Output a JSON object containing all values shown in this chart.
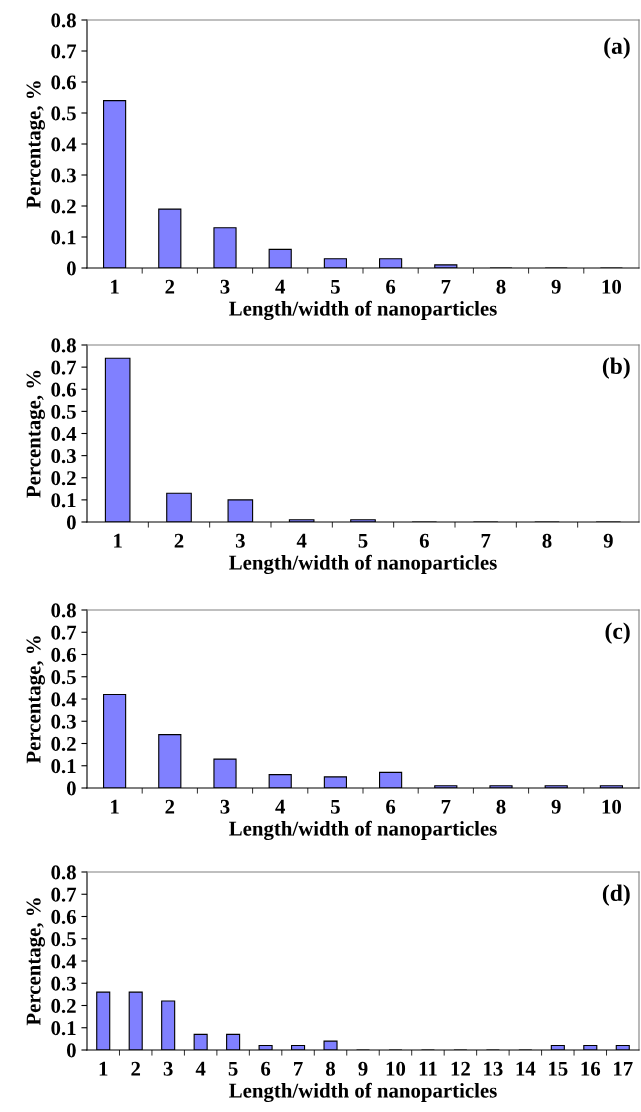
{
  "chart_data": [
    {
      "type": "bar",
      "categories": [
        "1",
        "2",
        "3",
        "4",
        "5",
        "6",
        "7",
        "8",
        "9",
        "10"
      ],
      "values": [
        0.54,
        0.19,
        0.13,
        0.06,
        0.03,
        0.03,
        0.01,
        0,
        0,
        0
      ],
      "color": "#8080ff",
      "xlabel": "Length/width of nanoparticles",
      "ylabel": "Percentage, %",
      "annotations": [
        "(a)"
      ],
      "ylim": [
        0,
        0.8
      ],
      "yticks": [
        0,
        0.1,
        0.2,
        0.3,
        0.4,
        0.5,
        0.6,
        0.7,
        0.8
      ],
      "grid": false,
      "legend": false
    },
    {
      "type": "bar",
      "categories": [
        "1",
        "2",
        "3",
        "4",
        "5",
        "6",
        "7",
        "8",
        "9"
      ],
      "values": [
        0.74,
        0.13,
        0.1,
        0.01,
        0.01,
        0,
        0,
        0,
        0
      ],
      "color": "#8080ff",
      "xlabel": "Length/width of nanoparticles",
      "ylabel": "Percentage, %",
      "annotations": [
        "(b)"
      ],
      "ylim": [
        0,
        0.8
      ],
      "yticks": [
        0,
        0.1,
        0.2,
        0.3,
        0.4,
        0.5,
        0.6,
        0.7,
        0.8
      ],
      "grid": false,
      "legend": false
    },
    {
      "type": "bar",
      "categories": [
        "1",
        "2",
        "3",
        "4",
        "5",
        "6",
        "7",
        "8",
        "9",
        "10"
      ],
      "values": [
        0.42,
        0.24,
        0.13,
        0.06,
        0.05,
        0.07,
        0.01,
        0.01,
        0.01,
        0.01
      ],
      "color": "#8080ff",
      "xlabel": "Length/width of nanoparticles",
      "ylabel": "Percentage, %",
      "annotations": [
        "(c)"
      ],
      "ylim": [
        0,
        0.8
      ],
      "yticks": [
        0,
        0.1,
        0.2,
        0.3,
        0.4,
        0.5,
        0.6,
        0.7,
        0.8
      ],
      "grid": false,
      "legend": false
    },
    {
      "type": "bar",
      "categories": [
        "1",
        "2",
        "3",
        "4",
        "5",
        "6",
        "7",
        "8",
        "9",
        "10",
        "11",
        "12",
        "13",
        "14",
        "15",
        "16",
        "17"
      ],
      "values": [
        0.26,
        0.26,
        0.22,
        0.07,
        0.07,
        0.02,
        0.02,
        0.04,
        0,
        0,
        0,
        0,
        0,
        0,
        0.02,
        0.02,
        0.02
      ],
      "color": "#8080ff",
      "xlabel": "Length/width of nanoparticles",
      "ylabel": "Percentage, %",
      "annotations": [
        "(d)"
      ],
      "ylim": [
        0,
        0.8
      ],
      "yticks": [
        0,
        0.1,
        0.2,
        0.3,
        0.4,
        0.5,
        0.6,
        0.7,
        0.8
      ],
      "grid": false,
      "legend": false
    }
  ]
}
